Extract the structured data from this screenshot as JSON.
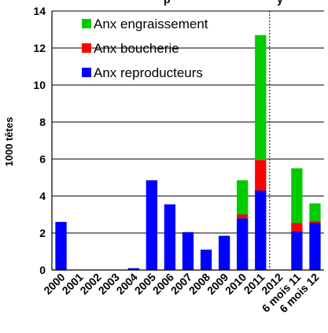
{
  "chart_data": {
    "type": "bar",
    "stacked": true,
    "title_fragment": "p",
    "title_fragment2": "y",
    "ylabel": "1000 têtes",
    "ylim": [
      0,
      14
    ],
    "yticks": [
      0,
      2,
      4,
      6,
      8,
      10,
      12,
      14
    ],
    "grid": true,
    "legend_position": "top-left",
    "categories": [
      "2000",
      "2001",
      "2002",
      "2003",
      "2004",
      "2005",
      "2006",
      "2007",
      "2008",
      "2009",
      "2010",
      "2011",
      "2012",
      "6 mois 11",
      "6 mois 12"
    ],
    "separator_after": "2011",
    "series": [
      {
        "name": "Anx reproducteurs",
        "color": "#0000ff",
        "values": [
          2.6,
          0,
          0,
          0,
          0.1,
          4.85,
          3.55,
          2.05,
          1.1,
          1.85,
          2.8,
          4.3,
          0,
          2.1,
          2.55
        ]
      },
      {
        "name": "Anx boucherie",
        "color": "#ff0000",
        "values": [
          0,
          0,
          0,
          0,
          0,
          0,
          0,
          0,
          0,
          0,
          0.2,
          1.65,
          0,
          0.45,
          0.1
        ]
      },
      {
        "name": "Anx engraissement",
        "color": "#00cc00",
        "values": [
          0,
          0,
          0,
          0,
          0,
          0,
          0,
          0,
          0,
          0,
          1.85,
          6.75,
          0,
          2.95,
          0.95
        ]
      }
    ]
  }
}
